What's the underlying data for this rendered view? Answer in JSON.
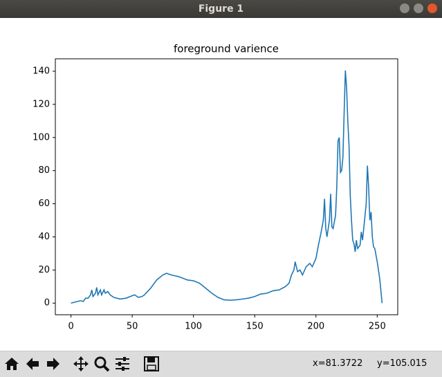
{
  "window": {
    "title": "Figure 1"
  },
  "toolbar": {
    "cursor_x": "x=81.3722",
    "cursor_y": "y=105.015"
  },
  "chart_data": {
    "type": "line",
    "title": "foreground varience",
    "x": [
      0,
      5,
      8,
      10,
      12,
      14,
      16,
      17,
      18,
      20,
      21,
      22,
      24,
      25,
      27,
      28,
      30,
      32,
      35,
      40,
      45,
      50,
      52,
      55,
      58,
      60,
      65,
      70,
      75,
      78,
      82,
      88,
      95,
      100,
      105,
      110,
      115,
      120,
      125,
      130,
      135,
      140,
      145,
      150,
      155,
      160,
      165,
      170,
      175,
      178,
      180,
      182,
      183,
      185,
      187,
      189,
      192,
      195,
      197,
      200,
      202,
      204,
      206,
      207,
      208,
      209,
      211,
      212,
      213,
      214,
      216,
      217,
      218,
      219,
      220,
      221,
      222,
      223,
      224,
      225,
      226,
      227,
      228,
      229,
      230,
      231,
      232,
      233,
      234,
      236,
      237,
      238,
      239,
      241,
      242,
      243,
      244,
      245,
      246,
      247,
      248,
      249,
      250,
      252,
      254
    ],
    "series": [
      {
        "name": "foreground varience",
        "color": "#1f77b4",
        "values": [
          0,
          1,
          1.5,
          1,
          3,
          3,
          5,
          8,
          4,
          6,
          9.5,
          5,
          8,
          5,
          8,
          6,
          7,
          5,
          3.5,
          2.5,
          3,
          4.5,
          5,
          3.5,
          4,
          5,
          9,
          14,
          17,
          18,
          17,
          16,
          14,
          13.5,
          12,
          9,
          6,
          3.5,
          2,
          1.8,
          2,
          2.5,
          3,
          4,
          5.5,
          6,
          7.5,
          8,
          10,
          12,
          17,
          20,
          25,
          19,
          20,
          17,
          22,
          24,
          22,
          27,
          35,
          42,
          50,
          63,
          45,
          40,
          50,
          66,
          46,
          45,
          53,
          70,
          98,
          100,
          79,
          80,
          88,
          115,
          140.5,
          130,
          110,
          95,
          65,
          50,
          38,
          36,
          31,
          38,
          33,
          35,
          43,
          38,
          45,
          60,
          83,
          70,
          50,
          55,
          40,
          34,
          33,
          29,
          25,
          15,
          0
        ]
      }
    ],
    "xlim": [
      -12.75,
      266.75
    ],
    "ylim": [
      -7.0,
      147.5
    ],
    "xticks": [
      0,
      50,
      100,
      150,
      200,
      250
    ],
    "yticks": [
      0,
      20,
      40,
      60,
      80,
      100,
      120,
      140
    ]
  }
}
